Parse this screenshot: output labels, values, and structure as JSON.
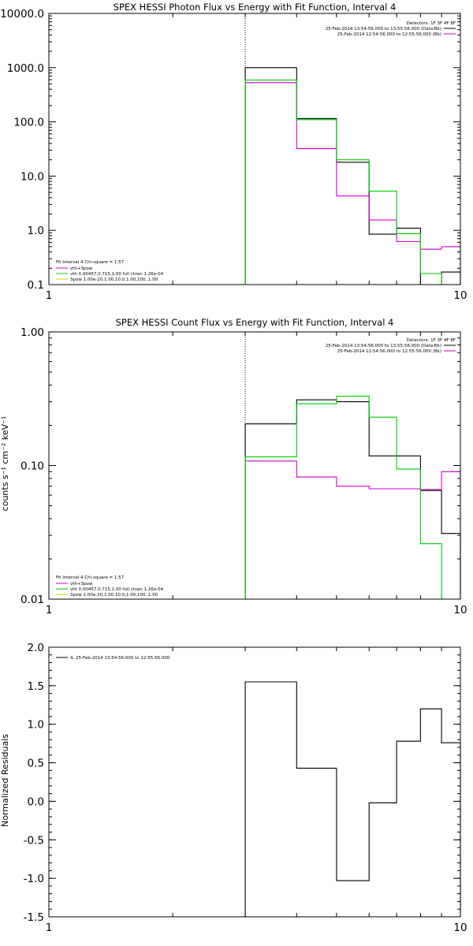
{
  "figure": {
    "panels": [
      {
        "id": "photon",
        "title": "SPEX HESSI Photon Flux vs Energy with Fit Function, Interval 4",
        "ylabel": "",
        "yscale": "log",
        "ylim": [
          0.1,
          10000
        ],
        "yticks": [
          "0.1",
          "1.0",
          "10.0",
          "100.0",
          "1000.0",
          "10000.0"
        ],
        "ytick_values": [
          0.1,
          1,
          10,
          100,
          1000,
          10000
        ],
        "xticks": [
          "1",
          "10"
        ],
        "xtick_values": [
          1,
          10
        ],
        "legend_right": {
          "header": "Detectors: 1F 3F 4F 8F",
          "lines": [
            {
              "text": "25-Feb-2014 13:54:56.000 to 13:55:56.000 (Data-Bk)",
              "color": "#000000"
            },
            {
              "text": "25-Feb-2014 12:54:56.000 to 12:55:56.000 (Bk)",
              "color": "#cc00cc"
            }
          ]
        },
        "legend_left": {
          "header": "Fit Interval 4   Chi-square = 1.57",
          "lines": [
            {
              "text": "vth+3pow",
              "color": "#cc00cc"
            },
            {
              "text": "vth 0.00457,0.715,1.00   full chian 1.26e-04",
              "color": "#00cc00"
            },
            {
              "text": "3pow 1.00e-20,1.00,10.0,1.00,100.,1.00",
              "color": "#cccc00"
            }
          ]
        }
      },
      {
        "id": "count",
        "title": "SPEX HESSI Count Flux vs Energy with Fit Function, Interval 4",
        "ylabel": "counts s⁻¹ cm⁻² keV⁻¹",
        "yscale": "log",
        "ylim": [
          0.01,
          1
        ],
        "yticks": [
          "0.01",
          "0.10",
          "1.00"
        ],
        "ytick_values": [
          0.01,
          0.1,
          1
        ],
        "xticks": [
          "1",
          "10"
        ],
        "xtick_values": [
          1,
          10
        ],
        "legend_right": {
          "header": "Detectors: 1F 3F 4F 8F",
          "lines": [
            {
              "text": "25-Feb-2014 13:54:56.000 to 13:55:56.000 (Data-Bk)",
              "color": "#000000"
            },
            {
              "text": "25-Feb-2014 12:54:56.000 to 12:55:56.000 (Bk)",
              "color": "#cc00cc"
            }
          ]
        },
        "legend_left": {
          "header": "Fit Interval 4   Chi-square = 1.57",
          "lines": [
            {
              "text": "vth+3pow",
              "color": "#cc00cc"
            },
            {
              "text": "vth 0.00457,0.715,1.00   full chian 1.26e-04",
              "color": "#00cc00"
            },
            {
              "text": "3pow 1.00e-20,1.00,10.0,1.00,100.,1.00",
              "color": "#cccc00"
            }
          ]
        }
      },
      {
        "id": "resid",
        "title": "",
        "ylabel": "Normalized Residuals",
        "yscale": "linear",
        "ylim": [
          -1.5,
          2.0
        ],
        "yticks": [
          "-1.5",
          "-1.0",
          "-0.5",
          "0.0",
          "0.5",
          "1.0",
          "1.5",
          "2.0"
        ],
        "ytick_values": [
          -1.5,
          -1.0,
          -0.5,
          0.0,
          0.5,
          1.0,
          1.5,
          2.0
        ],
        "xticks": [
          "1",
          "10"
        ],
        "xtick_values": [
          1,
          10
        ],
        "legend_resid": "4. 25-Feb-2014 13:54:56.000 to 12:55:56.000"
      }
    ]
  },
  "chart_data": [
    {
      "type": "line",
      "title": "SPEX HESSI Photon Flux vs Energy with Fit Function, Interval 4",
      "xlabel": "",
      "ylabel": "",
      "xscale": "log",
      "yscale": "log",
      "xlim": [
        1,
        10
      ],
      "ylim": [
        0.1,
        10000
      ],
      "vline_dotted": 3.0,
      "series": [
        {
          "name": "25-Feb-2014 13:54:56.000 to 13:55:56.000 (Data-Bk)",
          "color": "#000000",
          "edges": [
            3,
            4,
            5,
            6,
            7,
            8,
            9,
            10
          ],
          "values": [
            1000,
            115,
            18,
            0.85,
            1.1,
            0.1,
            0.17
          ]
        },
        {
          "name": "25-Feb-2014 12:54:56.000 to 12:55:56.000 (Bk)",
          "color": "#cc00cc",
          "edges": [
            3,
            4,
            5,
            6,
            7,
            8,
            9,
            10
          ],
          "values": [
            530,
            32,
            4.3,
            1.55,
            0.62,
            0.45,
            0.5
          ]
        },
        {
          "name": "vth 0.00457,0.715,1.00   full chian 1.26e-04",
          "color": "#00cc00",
          "edges": [
            3,
            4,
            5,
            6,
            7,
            8,
            9,
            10
          ],
          "values": [
            590,
            110,
            20,
            5.3,
            0.87,
            0.16,
            0.1
          ]
        }
      ]
    },
    {
      "type": "line",
      "title": "SPEX HESSI Count Flux vs Energy with Fit Function, Interval 4",
      "xlabel": "",
      "ylabel": "counts s⁻¹ cm⁻² keV⁻¹",
      "xscale": "log",
      "yscale": "log",
      "xlim": [
        1,
        10
      ],
      "ylim": [
        0.01,
        1
      ],
      "vline_dotted": 3.0,
      "series": [
        {
          "name": "25-Feb-2014 13:54:56.000 to 13:55:56.000 (Data-Bk)",
          "color": "#000000",
          "edges": [
            3,
            4,
            5,
            6,
            7,
            8,
            9,
            10
          ],
          "values": [
            0.205,
            0.31,
            0.3,
            0.118,
            0.118,
            0.065,
            0.031
          ]
        },
        {
          "name": "25-Feb-2014 12:54:56.000 to 12:55:56.000 (Bk)",
          "color": "#cc00cc",
          "edges": [
            3,
            4,
            5,
            6,
            7,
            8,
            9,
            10
          ],
          "values": [
            0.108,
            0.082,
            0.07,
            0.067,
            0.067,
            0.066,
            0.09
          ]
        },
        {
          "name": "vth 0.00457,0.715,1.00   full chian 1.26e-04",
          "color": "#00cc00",
          "edges": [
            3,
            4,
            5,
            6,
            7,
            8,
            9,
            10
          ],
          "values": [
            0.116,
            0.29,
            0.33,
            0.23,
            0.094,
            0.026,
            0.01
          ]
        }
      ]
    },
    {
      "type": "line",
      "title": "",
      "xlabel": "",
      "ylabel": "Normalized Residuals",
      "xscale": "log",
      "yscale": "linear",
      "xlim": [
        1,
        10
      ],
      "ylim": [
        -1.5,
        2.0
      ],
      "series": [
        {
          "name": "4. 25-Feb-2014 13:54:56.000 to 12:55:56.000",
          "color": "#000000",
          "edges": [
            3,
            4,
            5,
            6,
            7,
            8,
            9,
            10
          ],
          "values": [
            1.55,
            0.43,
            -1.03,
            -0.02,
            0.78,
            1.2,
            0.76
          ]
        }
      ]
    }
  ]
}
